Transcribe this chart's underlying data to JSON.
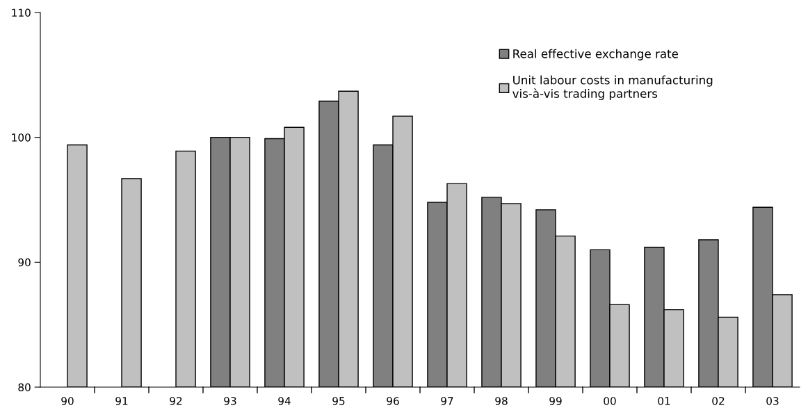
{
  "chart_data": {
    "type": "bar",
    "categories": [
      "90",
      "91",
      "92",
      "93",
      "94",
      "95",
      "96",
      "97",
      "98",
      "99",
      "00",
      "01",
      "02",
      "03"
    ],
    "series": [
      {
        "name": "Real effective exchange rate",
        "color": "#808080",
        "values": [
          null,
          null,
          null,
          100.0,
          99.9,
          102.9,
          99.4,
          94.8,
          95.2,
          94.2,
          91.0,
          91.2,
          91.8,
          94.4
        ]
      },
      {
        "name": "Unit labour costs in manufacturing\nvis-à-vis trading partners",
        "color": "#c0c0c0",
        "values": [
          99.4,
          96.7,
          98.9,
          100.0,
          100.8,
          103.7,
          101.7,
          96.3,
          94.7,
          92.1,
          86.6,
          86.2,
          85.6,
          87.4
        ]
      }
    ],
    "ylim": [
      80,
      110
    ],
    "yticks": [
      80,
      90,
      100,
      110
    ],
    "grid": false,
    "legend": "top right"
  }
}
